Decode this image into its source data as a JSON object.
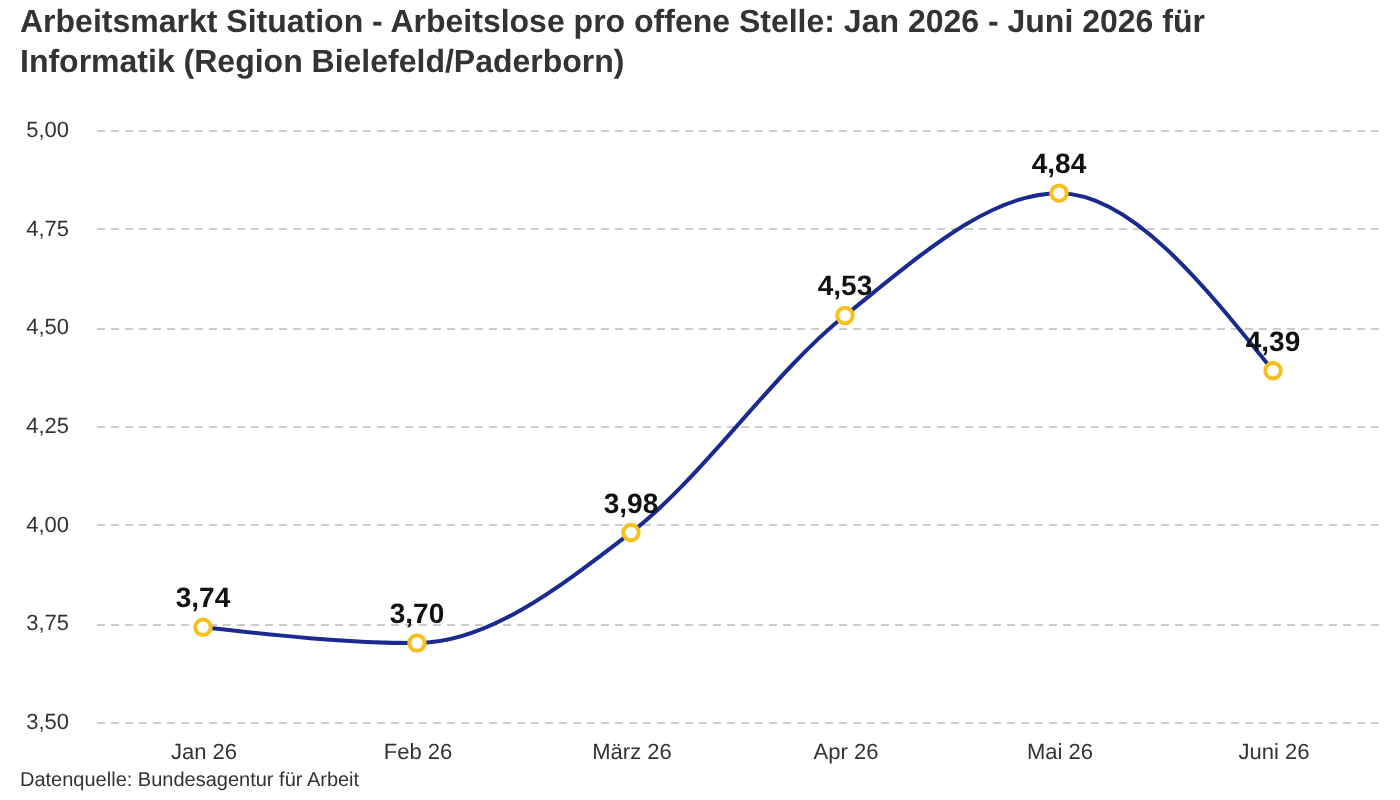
{
  "chart_data": {
    "type": "line",
    "title": "Arbeitsmarkt Situation - Arbeitslose pro offene Stelle: Jan 2026 - Juni 2026 für Informatik (Region Bielefeld/Paderborn)",
    "annotations": [
      "Datenquelle: Bundesagentur für Arbeit"
    ],
    "categories": [
      "Jan 26",
      "Feb 26",
      "März 26",
      "Apr 26",
      "Mai 26",
      "Juni 26"
    ],
    "values": [
      3.74,
      3.7,
      3.98,
      4.53,
      4.84,
      4.39
    ],
    "value_labels": [
      "3,74",
      "3,70",
      "3,98",
      "4,53",
      "4,84",
      "4,39"
    ],
    "color": "#1b2a8e",
    "ylim": [
      3.5,
      5.0
    ],
    "yticks": [
      {
        "value": 3.5,
        "label": "3,50"
      },
      {
        "value": 3.75,
        "label": "3,75"
      },
      {
        "value": 4.0,
        "label": "4,00"
      },
      {
        "value": 4.25,
        "label": "4,25"
      },
      {
        "value": 4.5,
        "label": "4,50"
      },
      {
        "value": 4.75,
        "label": "4,75"
      },
      {
        "value": 5.0,
        "label": "5,00"
      }
    ],
    "grid": "y",
    "marker": "circle",
    "line_style": "solid"
  }
}
